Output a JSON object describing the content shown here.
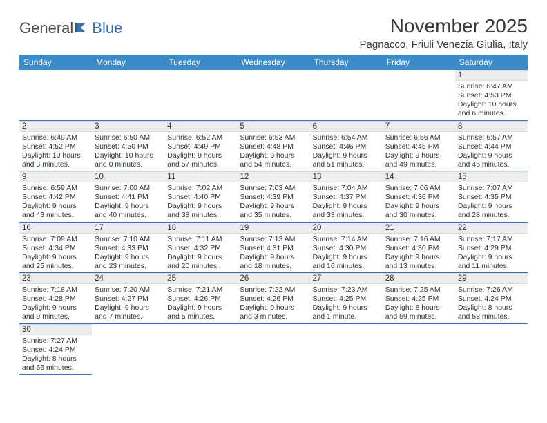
{
  "logo": {
    "text1": "General",
    "text2": "Blue"
  },
  "title": "November 2025",
  "location": "Pagnacco, Friuli Venezia Giulia, Italy",
  "colors": {
    "header_bg": "#3b8bc8",
    "header_text": "#ffffff",
    "daynum_bg": "#ececec",
    "row_border": "#2f75b5",
    "logo_gray": "#4d4d4d",
    "logo_blue": "#2f75b5"
  },
  "day_headers": [
    "Sunday",
    "Monday",
    "Tuesday",
    "Wednesday",
    "Thursday",
    "Friday",
    "Saturday"
  ],
  "weeks": [
    [
      null,
      null,
      null,
      null,
      null,
      null,
      {
        "n": "1",
        "sr": "Sunrise: 6:47 AM",
        "ss": "Sunset: 4:53 PM",
        "dl": "Daylight: 10 hours and 6 minutes."
      }
    ],
    [
      {
        "n": "2",
        "sr": "Sunrise: 6:49 AM",
        "ss": "Sunset: 4:52 PM",
        "dl": "Daylight: 10 hours and 3 minutes."
      },
      {
        "n": "3",
        "sr": "Sunrise: 6:50 AM",
        "ss": "Sunset: 4:50 PM",
        "dl": "Daylight: 10 hours and 0 minutes."
      },
      {
        "n": "4",
        "sr": "Sunrise: 6:52 AM",
        "ss": "Sunset: 4:49 PM",
        "dl": "Daylight: 9 hours and 57 minutes."
      },
      {
        "n": "5",
        "sr": "Sunrise: 6:53 AM",
        "ss": "Sunset: 4:48 PM",
        "dl": "Daylight: 9 hours and 54 minutes."
      },
      {
        "n": "6",
        "sr": "Sunrise: 6:54 AM",
        "ss": "Sunset: 4:46 PM",
        "dl": "Daylight: 9 hours and 51 minutes."
      },
      {
        "n": "7",
        "sr": "Sunrise: 6:56 AM",
        "ss": "Sunset: 4:45 PM",
        "dl": "Daylight: 9 hours and 49 minutes."
      },
      {
        "n": "8",
        "sr": "Sunrise: 6:57 AM",
        "ss": "Sunset: 4:44 PM",
        "dl": "Daylight: 9 hours and 46 minutes."
      }
    ],
    [
      {
        "n": "9",
        "sr": "Sunrise: 6:59 AM",
        "ss": "Sunset: 4:42 PM",
        "dl": "Daylight: 9 hours and 43 minutes."
      },
      {
        "n": "10",
        "sr": "Sunrise: 7:00 AM",
        "ss": "Sunset: 4:41 PM",
        "dl": "Daylight: 9 hours and 40 minutes."
      },
      {
        "n": "11",
        "sr": "Sunrise: 7:02 AM",
        "ss": "Sunset: 4:40 PM",
        "dl": "Daylight: 9 hours and 38 minutes."
      },
      {
        "n": "12",
        "sr": "Sunrise: 7:03 AM",
        "ss": "Sunset: 4:39 PM",
        "dl": "Daylight: 9 hours and 35 minutes."
      },
      {
        "n": "13",
        "sr": "Sunrise: 7:04 AM",
        "ss": "Sunset: 4:37 PM",
        "dl": "Daylight: 9 hours and 33 minutes."
      },
      {
        "n": "14",
        "sr": "Sunrise: 7:06 AM",
        "ss": "Sunset: 4:36 PM",
        "dl": "Daylight: 9 hours and 30 minutes."
      },
      {
        "n": "15",
        "sr": "Sunrise: 7:07 AM",
        "ss": "Sunset: 4:35 PM",
        "dl": "Daylight: 9 hours and 28 minutes."
      }
    ],
    [
      {
        "n": "16",
        "sr": "Sunrise: 7:09 AM",
        "ss": "Sunset: 4:34 PM",
        "dl": "Daylight: 9 hours and 25 minutes."
      },
      {
        "n": "17",
        "sr": "Sunrise: 7:10 AM",
        "ss": "Sunset: 4:33 PM",
        "dl": "Daylight: 9 hours and 23 minutes."
      },
      {
        "n": "18",
        "sr": "Sunrise: 7:11 AM",
        "ss": "Sunset: 4:32 PM",
        "dl": "Daylight: 9 hours and 20 minutes."
      },
      {
        "n": "19",
        "sr": "Sunrise: 7:13 AM",
        "ss": "Sunset: 4:31 PM",
        "dl": "Daylight: 9 hours and 18 minutes."
      },
      {
        "n": "20",
        "sr": "Sunrise: 7:14 AM",
        "ss": "Sunset: 4:30 PM",
        "dl": "Daylight: 9 hours and 16 minutes."
      },
      {
        "n": "21",
        "sr": "Sunrise: 7:16 AM",
        "ss": "Sunset: 4:30 PM",
        "dl": "Daylight: 9 hours and 13 minutes."
      },
      {
        "n": "22",
        "sr": "Sunrise: 7:17 AM",
        "ss": "Sunset: 4:29 PM",
        "dl": "Daylight: 9 hours and 11 minutes."
      }
    ],
    [
      {
        "n": "23",
        "sr": "Sunrise: 7:18 AM",
        "ss": "Sunset: 4:28 PM",
        "dl": "Daylight: 9 hours and 9 minutes."
      },
      {
        "n": "24",
        "sr": "Sunrise: 7:20 AM",
        "ss": "Sunset: 4:27 PM",
        "dl": "Daylight: 9 hours and 7 minutes."
      },
      {
        "n": "25",
        "sr": "Sunrise: 7:21 AM",
        "ss": "Sunset: 4:26 PM",
        "dl": "Daylight: 9 hours and 5 minutes."
      },
      {
        "n": "26",
        "sr": "Sunrise: 7:22 AM",
        "ss": "Sunset: 4:26 PM",
        "dl": "Daylight: 9 hours and 3 minutes."
      },
      {
        "n": "27",
        "sr": "Sunrise: 7:23 AM",
        "ss": "Sunset: 4:25 PM",
        "dl": "Daylight: 9 hours and 1 minute."
      },
      {
        "n": "28",
        "sr": "Sunrise: 7:25 AM",
        "ss": "Sunset: 4:25 PM",
        "dl": "Daylight: 8 hours and 59 minutes."
      },
      {
        "n": "29",
        "sr": "Sunrise: 7:26 AM",
        "ss": "Sunset: 4:24 PM",
        "dl": "Daylight: 8 hours and 58 minutes."
      }
    ],
    [
      {
        "n": "30",
        "sr": "Sunrise: 7:27 AM",
        "ss": "Sunset: 4:24 PM",
        "dl": "Daylight: 8 hours and 56 minutes."
      },
      null,
      null,
      null,
      null,
      null,
      null
    ]
  ]
}
